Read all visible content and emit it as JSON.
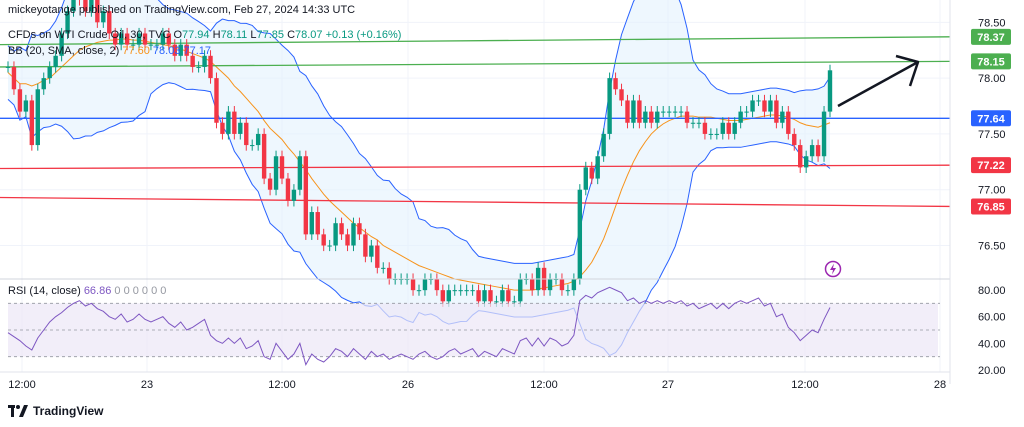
{
  "header": {
    "attribution": "mickeyotange published on TradingView.com, Feb 27, 2024 14:33 UTC",
    "symbol": "CFDs on WTI Crude Oil, 30, TVC",
    "ohlc": {
      "o_label": "O",
      "o": "77.94",
      "h_label": "H",
      "h": "78.11",
      "l_label": "L",
      "l": "77.85",
      "c_label": "C",
      "c": "78.07",
      "change": "+0.13 (+0.16%)"
    },
    "bb": {
      "label": "BB (20, SMA, close, 2)",
      "v1": "77.60",
      "v2": "78.03",
      "v3": "77.17"
    },
    "rsi": {
      "label": "RSI (14, close)",
      "value": "66.86",
      "zeros": "0 0 0 0 0 0"
    }
  },
  "footer": {
    "brand": "TradingView"
  },
  "colors": {
    "up": "#089981",
    "down": "#f23645",
    "bb_basis": "#f7931a",
    "bb_band": "#2962ff",
    "bb_fill": "#e3f2fd",
    "rsi": "#7e57c2",
    "rsi_fill": "#ede7f6",
    "green_line": "#4caf50",
    "red_line": "#f23645",
    "blue_line": "#2962ff"
  },
  "chart_data": {
    "type": "candlestick",
    "price_axis": {
      "min": 76.2,
      "max": 78.7,
      "ticks": [
        "78.50",
        "78.00",
        "77.50",
        "77.00",
        "76.50"
      ]
    },
    "time_axis": [
      "12:00",
      "23",
      "12:00",
      "26",
      "12:00",
      "27",
      "12:00",
      "28"
    ],
    "price_labels": [
      {
        "text": "78.37",
        "value": 78.37,
        "color": "#4caf50"
      },
      {
        "text": "78.15",
        "value": 78.15,
        "color": "#4caf50"
      },
      {
        "text": "77.64",
        "value": 77.64,
        "color": "#2962ff"
      },
      {
        "text": "77.22",
        "value": 77.22,
        "color": "#f23645"
      },
      {
        "text": "76.85",
        "value": 76.85,
        "color": "#f23645"
      }
    ],
    "trendlines": [
      {
        "kind": "resistance",
        "color": "#4caf50",
        "from": [
          0,
          78.3
        ],
        "to": [
          1.0,
          78.37
        ]
      },
      {
        "kind": "resistance",
        "color": "#4caf50",
        "from": [
          0,
          78.1
        ],
        "to": [
          1.0,
          78.15
        ]
      },
      {
        "kind": "support",
        "color": "#2962ff",
        "from": [
          0,
          77.64
        ],
        "to": [
          1.0,
          77.64
        ]
      },
      {
        "kind": "support",
        "color": "#f23645",
        "from": [
          0,
          77.19
        ],
        "to": [
          1.0,
          77.22
        ]
      },
      {
        "kind": "support",
        "color": "#f23645",
        "from": [
          0,
          76.93
        ],
        "to": [
          1.0,
          76.85
        ]
      }
    ],
    "close": [
      78.1,
      77.9,
      77.7,
      77.8,
      77.4,
      77.9,
      78.0,
      78.1,
      78.2,
      78.4,
      78.6,
      78.8,
      78.7,
      78.6,
      78.7,
      78.5,
      78.6,
      78.4,
      78.3,
      78.4,
      78.3,
      78.3,
      78.4,
      78.3,
      78.3,
      78.3,
      78.4,
      78.3,
      78.2,
      78.3,
      78.2,
      78.1,
      78.1,
      78.2,
      78.0,
      77.6,
      77.5,
      77.7,
      77.5,
      77.6,
      77.4,
      77.4,
      77.5,
      77.1,
      77.0,
      77.3,
      77.1,
      76.9,
      77.0,
      77.3,
      76.6,
      76.8,
      76.6,
      76.5,
      76.5,
      76.7,
      76.6,
      76.5,
      76.7,
      76.6,
      76.4,
      76.5,
      76.3,
      76.3,
      76.2,
      76.2,
      76.2,
      76.2,
      76.1,
      76.1,
      76.2,
      76.2,
      76.1,
      76.0,
      76.1,
      76.1,
      76.1,
      76.1,
      76.1,
      76.0,
      76.1,
      76.0,
      76.0,
      76.1,
      76.0,
      76.0,
      76.2,
      76.2,
      76.1,
      76.3,
      76.1,
      76.2,
      76.2,
      76.1,
      76.1,
      76.2,
      77.0,
      77.2,
      77.1,
      77.3,
      77.5,
      78.0,
      77.9,
      77.8,
      77.6,
      77.8,
      77.6,
      77.7,
      77.6,
      77.7,
      77.7,
      77.7,
      77.7,
      77.7,
      77.6,
      77.6,
      77.6,
      77.5,
      77.5,
      77.5,
      77.6,
      77.5,
      77.6,
      77.7,
      77.7,
      77.8,
      77.8,
      77.7,
      77.8,
      77.6,
      77.7,
      77.5,
      77.4,
      77.2,
      77.3,
      77.4,
      77.3,
      77.7,
      78.07
    ],
    "bb_basis": [
      78.05,
      78.0,
      77.95,
      77.95,
      77.93,
      77.95,
      77.98,
      78.0,
      78.05,
      78.1,
      78.15,
      78.2,
      78.25,
      78.28,
      78.3,
      78.32,
      78.33,
      78.34,
      78.34,
      78.35,
      78.35,
      78.34,
      78.34,
      78.33,
      78.32,
      78.31,
      78.3,
      78.29,
      78.28,
      78.26,
      78.24,
      78.22,
      78.2,
      78.18,
      78.15,
      78.1,
      78.05,
      78.0,
      77.93,
      77.88,
      77.82,
      77.76,
      77.7,
      77.62,
      77.55,
      77.5,
      77.45,
      77.38,
      77.32,
      77.25,
      77.18,
      77.1,
      77.03,
      76.96,
      76.9,
      76.85,
      76.8,
      76.75,
      76.7,
      76.66,
      76.62,
      76.58,
      76.55,
      76.5,
      76.47,
      76.44,
      76.41,
      76.38,
      76.35,
      76.32,
      76.3,
      76.28,
      76.26,
      76.24,
      76.22,
      76.2,
      76.19,
      76.18,
      76.17,
      76.16,
      76.15,
      76.14,
      76.13,
      76.12,
      76.11,
      76.1,
      76.1,
      76.1,
      76.1,
      76.11,
      76.12,
      76.13,
      76.14,
      76.15,
      76.16,
      76.18,
      76.22,
      76.28,
      76.35,
      76.45,
      76.56,
      76.7,
      76.85,
      77.0,
      77.13,
      77.25,
      77.35,
      77.43,
      77.5,
      77.55,
      77.59,
      77.62,
      77.64,
      77.66,
      77.66,
      77.66,
      77.65,
      77.65,
      77.65,
      77.64,
      77.63,
      77.62,
      77.62,
      77.62,
      77.63,
      77.64,
      77.65,
      77.66,
      77.67,
      77.67,
      77.66,
      77.65,
      77.63,
      77.6,
      77.58,
      77.57,
      77.56,
      77.58,
      77.6
    ],
    "rsi_axis": {
      "min": 20,
      "max": 80,
      "ticks": [
        "80.00",
        "60.00",
        "40.00",
        "20.00"
      ]
    },
    "rsi_values": [
      48,
      45,
      42,
      38,
      35,
      44,
      50,
      56,
      60,
      63,
      67,
      70,
      72,
      68,
      70,
      66,
      64,
      60,
      58,
      62,
      56,
      58,
      62,
      58,
      56,
      58,
      60,
      55,
      52,
      56,
      50,
      52,
      55,
      58,
      46,
      42,
      40,
      44,
      40,
      44,
      36,
      38,
      42,
      30,
      28,
      40,
      34,
      28,
      32,
      40,
      24,
      32,
      28,
      26,
      30,
      36,
      34,
      30,
      36,
      32,
      28,
      34,
      30,
      32,
      28,
      30,
      32,
      30,
      28,
      32,
      34,
      30,
      28,
      30,
      34,
      36,
      32,
      34,
      36,
      30,
      34,
      32,
      30,
      36,
      34,
      32,
      42,
      44,
      38,
      44,
      38,
      44,
      42,
      38,
      40,
      46,
      72,
      76,
      74,
      78,
      80,
      82,
      80,
      78,
      72,
      74,
      70,
      72,
      70,
      72,
      70,
      72,
      70,
      72,
      68,
      70,
      66,
      68,
      70,
      66,
      70,
      66,
      70,
      72,
      70,
      72,
      74,
      68,
      70,
      60,
      62,
      52,
      48,
      42,
      46,
      50,
      48,
      58,
      66.86
    ]
  }
}
